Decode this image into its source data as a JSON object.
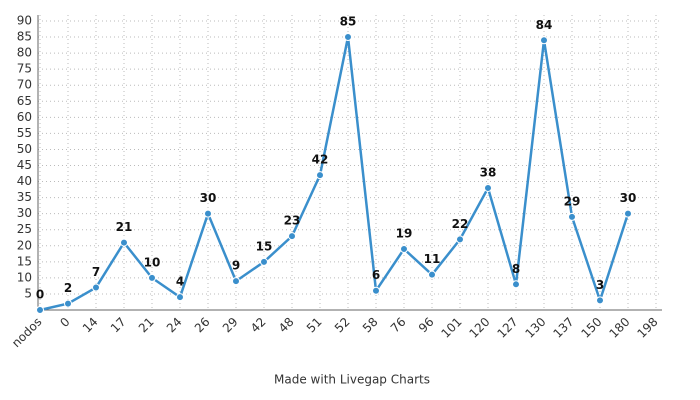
{
  "chart_data": {
    "type": "line",
    "categories": [
      "nodos",
      "0",
      "14",
      "17",
      "21",
      "24",
      "26",
      "29",
      "42",
      "48",
      "51",
      "52",
      "58",
      "76",
      "96",
      "101",
      "120",
      "127",
      "130",
      "137",
      "150",
      "180",
      "198"
    ],
    "series": [
      {
        "name": null,
        "color": "#3a8fcc",
        "values": [
          0,
          2,
          7,
          21,
          10,
          4,
          30,
          9,
          15,
          23,
          42,
          85,
          6,
          19,
          11,
          22,
          38,
          8,
          84,
          29,
          3,
          30,
          null
        ]
      }
    ],
    "ylim": [
      0,
      90
    ],
    "yticks": [
      5,
      10,
      15,
      20,
      25,
      30,
      35,
      40,
      45,
      50,
      55,
      60,
      65,
      70,
      75,
      80,
      85,
      90
    ],
    "grid": true,
    "footer": "Made with Livegap Charts"
  }
}
